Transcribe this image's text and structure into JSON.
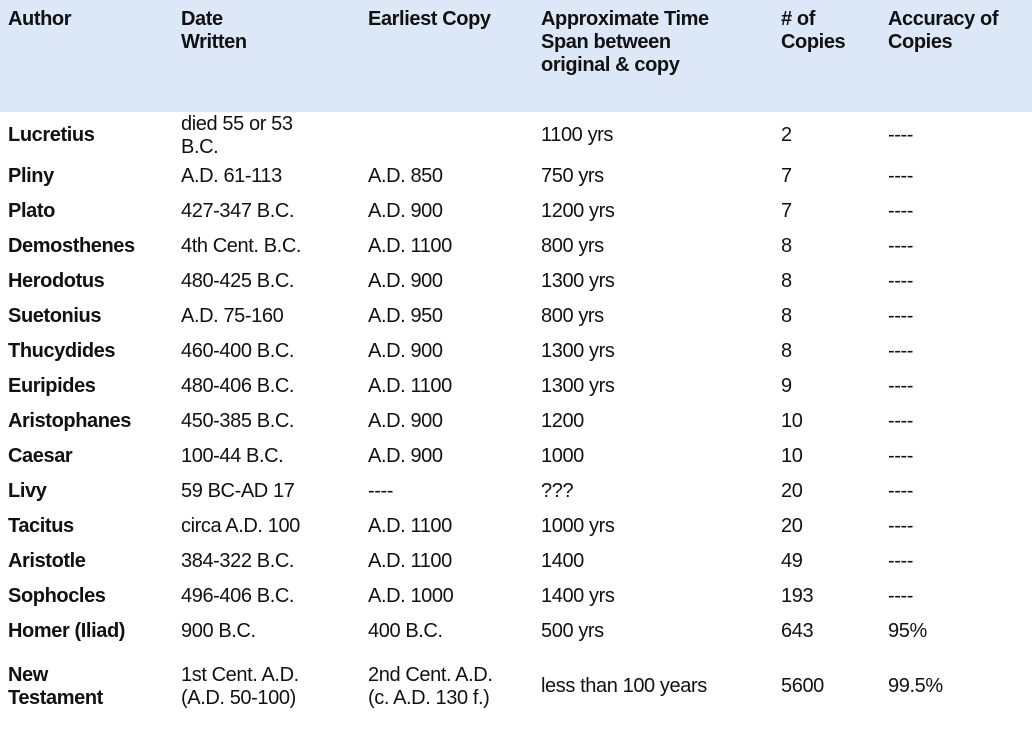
{
  "table": {
    "header": [
      [
        "Author"
      ],
      [
        "Date",
        "Written"
      ],
      [
        "Earliest Copy"
      ],
      [
        "Approximate Time",
        "Span between",
        "original & copy"
      ],
      [
        "# of",
        "Copies"
      ],
      [
        "Accuracy of",
        "Copies"
      ]
    ],
    "rows": [
      [
        [
          "Lucretius"
        ],
        [
          "died 55 or 53",
          "B.C."
        ],
        [],
        [
          "1100 yrs"
        ],
        [
          "2"
        ],
        [
          "----"
        ]
      ],
      [
        [
          "Pliny"
        ],
        [
          "A.D. 61-113"
        ],
        [
          "A.D. 850"
        ],
        [
          "750 yrs"
        ],
        [
          "7"
        ],
        [
          "----"
        ]
      ],
      [
        [
          "Plato"
        ],
        [
          "427-347 B.C."
        ],
        [
          "A.D. 900"
        ],
        [
          "1200 yrs"
        ],
        [
          "7"
        ],
        [
          "----"
        ]
      ],
      [
        [
          "Demosthenes"
        ],
        [
          "4th Cent. B.C."
        ],
        [
          "A.D. 1100"
        ],
        [
          "800 yrs"
        ],
        [
          "8"
        ],
        [
          "----"
        ]
      ],
      [
        [
          "Herodotus"
        ],
        [
          "480-425 B.C."
        ],
        [
          "A.D. 900"
        ],
        [
          "1300 yrs"
        ],
        [
          "8"
        ],
        [
          "----"
        ]
      ],
      [
        [
          "Suetonius"
        ],
        [
          "A.D. 75-160"
        ],
        [
          "A.D. 950"
        ],
        [
          "800 yrs"
        ],
        [
          "8"
        ],
        [
          "----"
        ]
      ],
      [
        [
          "Thucydides"
        ],
        [
          "460-400 B.C."
        ],
        [
          "A.D. 900"
        ],
        [
          "1300 yrs"
        ],
        [
          "8"
        ],
        [
          "----"
        ]
      ],
      [
        [
          "Euripides"
        ],
        [
          "480-406 B.C."
        ],
        [
          "A.D. 1100"
        ],
        [
          "1300 yrs"
        ],
        [
          "9"
        ],
        [
          "----"
        ]
      ],
      [
        [
          "Aristophanes"
        ],
        [
          "450-385 B.C."
        ],
        [
          "A.D. 900"
        ],
        [
          "1200"
        ],
        [
          "10"
        ],
        [
          "----"
        ]
      ],
      [
        [
          "Caesar"
        ],
        [
          "100-44 B.C."
        ],
        [
          "A.D. 900"
        ],
        [
          "1000"
        ],
        [
          "10"
        ],
        [
          "----"
        ]
      ],
      [
        [
          "Livy"
        ],
        [
          "59 BC-AD 17"
        ],
        [
          "----"
        ],
        [
          "???"
        ],
        [
          "20"
        ],
        [
          "----"
        ]
      ],
      [
        [
          "Tacitus"
        ],
        [
          "circa A.D. 100"
        ],
        [
          "A.D. 1100"
        ],
        [
          "1000 yrs"
        ],
        [
          "20"
        ],
        [
          "----"
        ]
      ],
      [
        [
          "Aristotle"
        ],
        [
          "384-322 B.C."
        ],
        [
          "A.D. 1100"
        ],
        [
          "1400"
        ],
        [
          "49"
        ],
        [
          "----"
        ]
      ],
      [
        [
          "Sophocles"
        ],
        [
          "496-406 B.C."
        ],
        [
          "A.D. 1000"
        ],
        [
          "1400 yrs"
        ],
        [
          "193"
        ],
        [
          "----"
        ]
      ],
      [
        [
          "Homer (Iliad)"
        ],
        [
          "900 B.C."
        ],
        [
          "400 B.C."
        ],
        [
          "500 yrs"
        ],
        [
          "643"
        ],
        [
          "95%"
        ]
      ],
      [
        [
          "New",
          "Testament"
        ],
        [
          "1st Cent. A.D.",
          "(A.D. 50-100)"
        ],
        [
          "2nd Cent. A.D.",
          "(c. A.D. 130 f.)"
        ],
        [
          "less than 100 years"
        ],
        [
          "5600"
        ],
        [
          "99.5%"
        ]
      ]
    ]
  }
}
